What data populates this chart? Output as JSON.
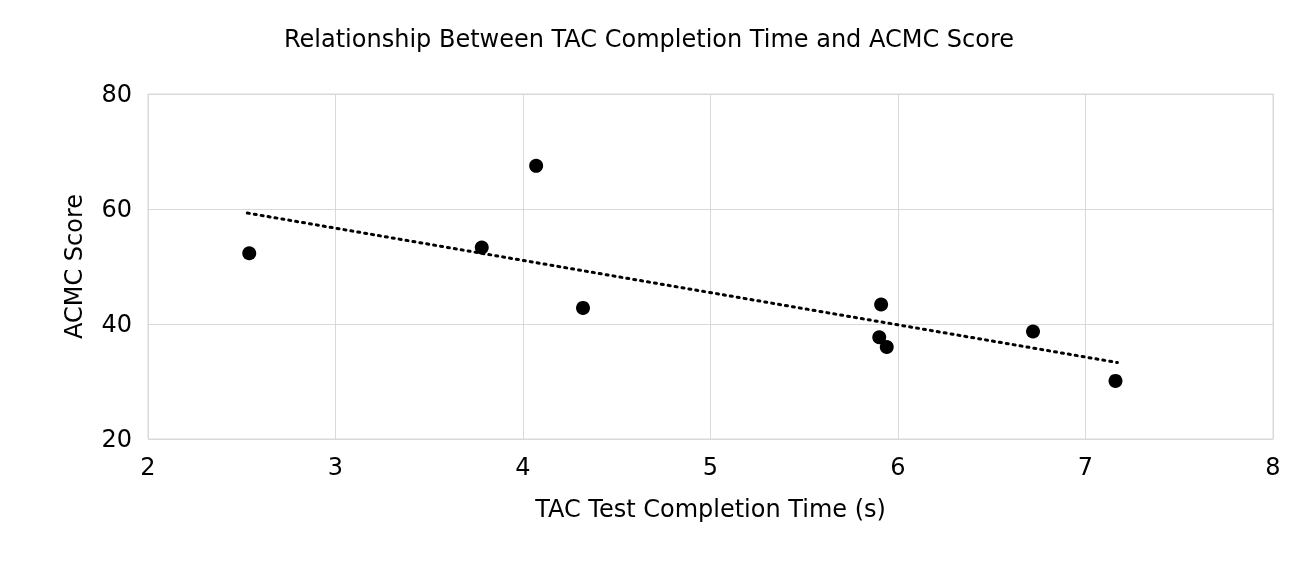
{
  "chart_data": {
    "type": "scatter",
    "title": "Relationship Between TAC Completion Time and ACMC Score",
    "xlabel": "TAC Test Completion Time (s)",
    "ylabel": "ACMC Score",
    "series": [
      {
        "color": "#000000",
        "marker": "circle",
        "x": [
          2.54,
          3.78,
          4.07,
          4.32,
          5.91,
          5.9,
          5.94,
          6.72,
          7.16
        ],
        "values": [
          52.3,
          53.3,
          67.5,
          42.8,
          43.4,
          37.7,
          36.0,
          38.7,
          30.1
        ]
      },
      {
        "type": "line",
        "color": "#000000",
        "line_style": "dotted",
        "marker": "none",
        "x": [
          2.53,
          7.17
        ],
        "values": [
          59.3,
          33.3
        ]
      }
    ],
    "xlim": [
      2,
      8
    ],
    "xticks": [
      2,
      3,
      4,
      5,
      6,
      7,
      8
    ],
    "ylim": [
      20,
      80
    ],
    "yticks": [
      20,
      40,
      60,
      80
    ],
    "grid": true
  }
}
